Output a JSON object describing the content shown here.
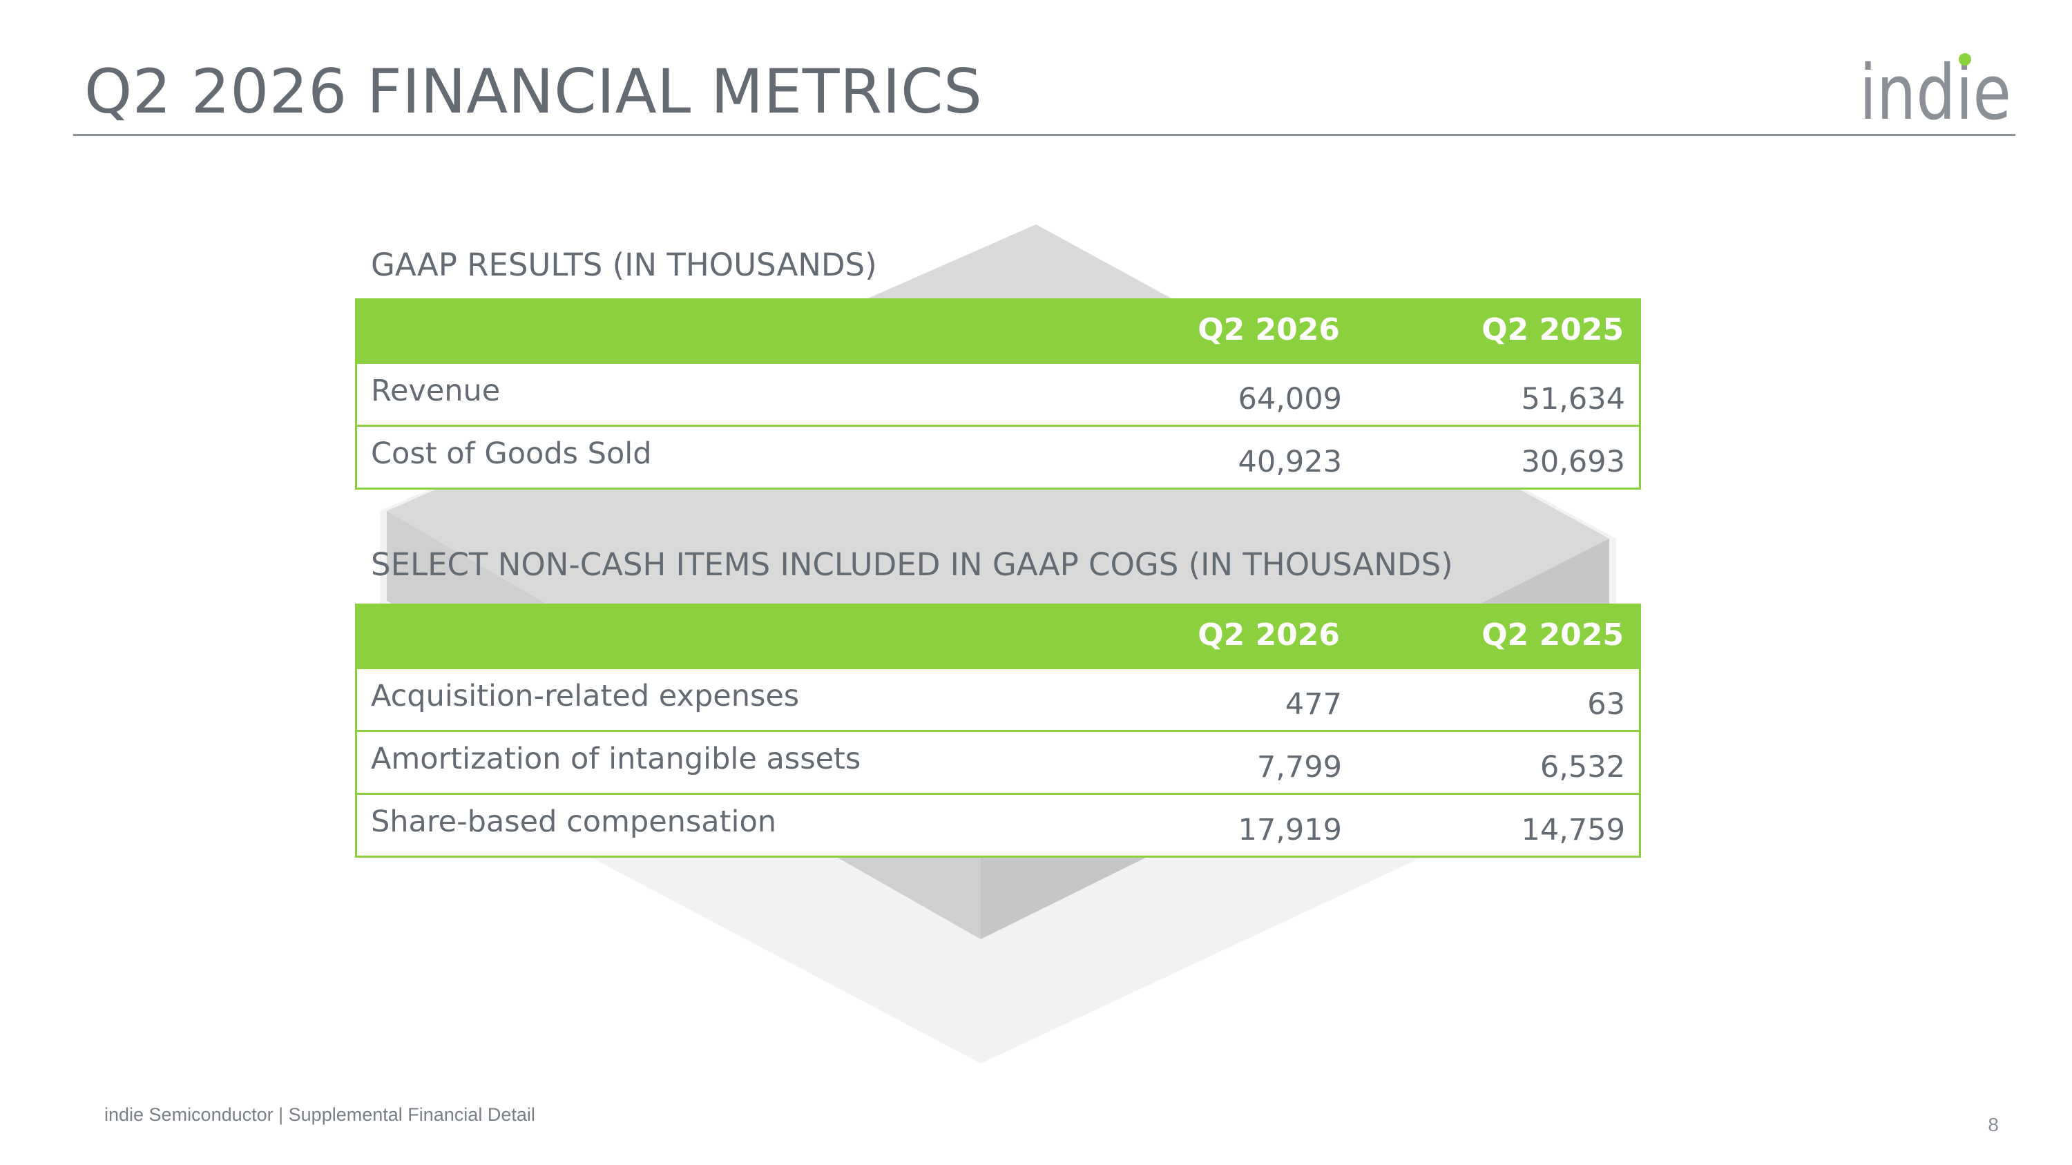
{
  "header": {
    "title": "Q2 2026 FINANCIAL METRICS",
    "logo_text": "indie",
    "logo_accent_color": "#8bd13f"
  },
  "colors": {
    "table_header": "#8bd13f",
    "text": "#636a72",
    "background_graphic": "#d9d9d9"
  },
  "gaap_table": {
    "title": "GAAP RESULTS (IN THOUSANDS)",
    "columns": [
      "Q2 2026",
      "Q2 2025"
    ],
    "rows": [
      {
        "label": "Revenue",
        "q2_2026": "64,009",
        "q2_2025": "51,634"
      },
      {
        "label": "Cost of Goods Sold",
        "q2_2026": "40,923",
        "q2_2025": "30,693"
      }
    ]
  },
  "noncash_table": {
    "title": "SELECT NON-CASH ITEMS INCLUDED IN GAAP COGS (IN THOUSANDS)",
    "columns": [
      "Q2 2026",
      "Q2 2025"
    ],
    "rows": [
      {
        "label": "Acquisition-related expenses",
        "q2_2026": "477",
        "q2_2025": "63"
      },
      {
        "label": "Amortization of intangible assets",
        "q2_2026": "7,799",
        "q2_2025": "6,532"
      },
      {
        "label": "Share-based compensation",
        "q2_2026": "17,919",
        "q2_2025": "14,759"
      }
    ]
  },
  "footer": {
    "text": "indie Semiconductor | Supplemental Financial Detail",
    "page_number": "8"
  }
}
